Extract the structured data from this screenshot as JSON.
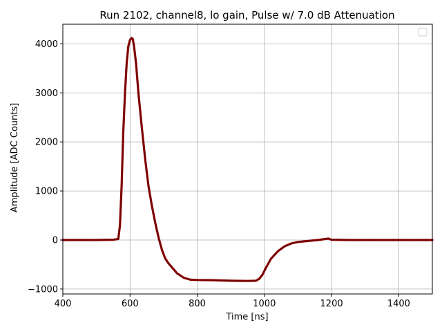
{
  "chart_data": {
    "type": "line",
    "title": "Run 2102, channel8, lo gain, Pulse w/ 7.0 dB Attenuation",
    "xlabel": "Time [ns]",
    "ylabel": "Amplitude [ADC Counts]",
    "xlim": [
      400,
      1500
    ],
    "ylim": [
      -1100,
      4400
    ],
    "xticks": [
      400,
      600,
      800,
      1000,
      1200,
      1400
    ],
    "yticks": [
      -1000,
      0,
      1000,
      2000,
      3000,
      4000
    ],
    "xtick_labels": [
      "400",
      "600",
      "800",
      "1000",
      "1200",
      "1400"
    ],
    "ytick_labels": [
      "−1000",
      "0",
      "1000",
      "2000",
      "3000",
      "4000"
    ],
    "grid": true,
    "legend": "top-right (empty)",
    "series": [
      {
        "color": "#8b0000",
        "x": [
          400,
          450,
          500,
          550,
          565,
          570,
          575,
          580,
          585,
          590,
          595,
          600,
          605,
          608,
          612,
          618,
          625,
          635,
          645,
          655,
          665,
          675,
          685,
          695,
          705,
          715,
          725,
          740,
          760,
          780,
          800,
          850,
          900,
          950,
          975,
          985,
          995,
          1005,
          1020,
          1040,
          1060,
          1080,
          1100,
          1130,
          1160,
          1190,
          1200,
          1250,
          1300,
          1400,
          1500
        ],
        "y": [
          0,
          0,
          0,
          5,
          20,
          300,
          1100,
          2200,
          3000,
          3600,
          3950,
          4080,
          4120,
          4100,
          3950,
          3600,
          3000,
          2300,
          1650,
          1100,
          700,
          350,
          50,
          -200,
          -380,
          -480,
          -560,
          -680,
          -770,
          -810,
          -815,
          -820,
          -830,
          -835,
          -830,
          -790,
          -700,
          -560,
          -380,
          -230,
          -130,
          -70,
          -40,
          -20,
          0,
          30,
          5,
          0,
          0,
          0,
          0
        ]
      }
    ]
  }
}
